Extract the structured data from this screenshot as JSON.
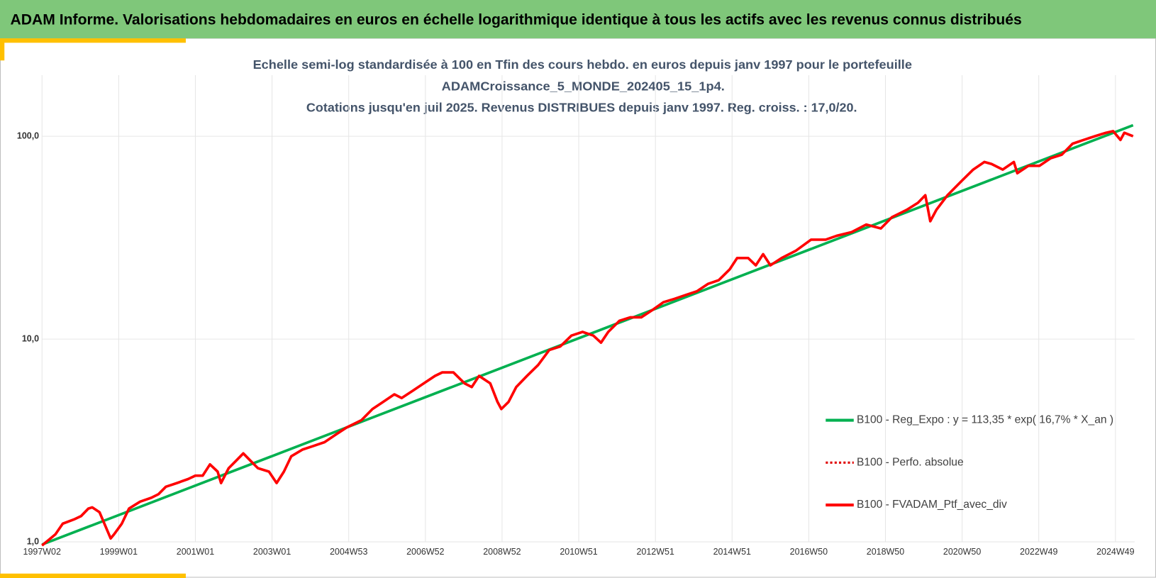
{
  "header": "ADAM Informe. Valorisations hebdomadaires en euros en échelle logarithmique identique à tous les actifs avec les revenus connus distribués",
  "chart_data": {
    "type": "line",
    "title": [
      "Echelle semi-log standardisée  à 100 en Tfin des cours hebdo.  en euros depuis janv 1997 pour le portefeuille",
      "ADAMCroissance_5_MONDE_202405_15_1p4.",
      "Cotations jusqu'en juil 2025. Revenus DISTRIBUES depuis janv 1997. Reg. croiss. : 17,0/20."
    ],
    "log_y": true,
    "grid": true,
    "legend": "right",
    "xlim": [
      1997,
      2025.5
    ],
    "xticks": [
      {
        "value": 1997,
        "label": "1997W02"
      },
      {
        "value": 1999,
        "label": "1999W01"
      },
      {
        "value": 2001,
        "label": "2001W01"
      },
      {
        "value": 2003,
        "label": "2003W01"
      },
      {
        "value": 2005,
        "label": "2004W53"
      },
      {
        "value": 2007,
        "label": "2006W52"
      },
      {
        "value": 2009,
        "label": "2008W52"
      },
      {
        "value": 2011,
        "label": "2010W51"
      },
      {
        "value": 2013,
        "label": "2012W51"
      },
      {
        "value": 2015,
        "label": "2014W51"
      },
      {
        "value": 2017,
        "label": "2016W50"
      },
      {
        "value": 2019,
        "label": "2018W50"
      },
      {
        "value": 2021,
        "label": "2020W50"
      },
      {
        "value": 2023,
        "label": "2022W49"
      },
      {
        "value": 2025,
        "label": "2024W49"
      }
    ],
    "ylim": [
      1,
      200
    ],
    "yticks": [
      {
        "value": 1,
        "label": "1,0"
      },
      {
        "value": 10,
        "label": "10,0"
      },
      {
        "value": 100,
        "label": "100,0"
      }
    ],
    "x": [
      1997.0,
      1997.35,
      1997.54,
      1997.83,
      1998.02,
      1998.21,
      1998.31,
      1998.5,
      1998.79,
      1998.88,
      1999.08,
      1999.27,
      1999.56,
      1999.85,
      2000.04,
      2000.23,
      2000.52,
      2000.81,
      2001.0,
      2001.19,
      2001.38,
      2001.58,
      2001.67,
      2001.87,
      2002.06,
      2002.25,
      2002.44,
      2002.63,
      2002.92,
      2003.12,
      2003.31,
      2003.5,
      2003.79,
      2004.08,
      2004.37,
      2004.65,
      2004.94,
      2005.33,
      2005.62,
      2005.9,
      2006.19,
      2006.38,
      2006.67,
      2006.96,
      2007.25,
      2007.44,
      2007.73,
      2008.02,
      2008.21,
      2008.4,
      2008.69,
      2008.88,
      2008.98,
      2009.17,
      2009.37,
      2009.65,
      2009.94,
      2010.23,
      2010.52,
      2010.81,
      2011.1,
      2011.38,
      2011.58,
      2011.77,
      2012.06,
      2012.35,
      2012.63,
      2012.92,
      2013.21,
      2013.5,
      2013.79,
      2014.08,
      2014.37,
      2014.65,
      2014.94,
      2015.13,
      2015.42,
      2015.62,
      2015.81,
      2016.0,
      2016.29,
      2016.67,
      2017.06,
      2017.44,
      2017.73,
      2018.12,
      2018.5,
      2018.88,
      2019.17,
      2019.56,
      2019.85,
      2020.04,
      2020.17,
      2020.33,
      2020.62,
      2021.0,
      2021.29,
      2021.58,
      2021.77,
      2022.06,
      2022.35,
      2022.44,
      2022.73,
      2023.02,
      2023.31,
      2023.6,
      2023.88,
      2024.17,
      2024.46,
      2024.75,
      2024.94,
      2025.13,
      2025.23,
      2025.46
    ],
    "series": [
      {
        "name": "B100 - Reg_Expo : y = 113,35 * exp( 16,7% *  X_an )",
        "color": "#00b050",
        "style": "solid",
        "x": [
          1997,
          2025.46
        ],
        "values": [
          0.97,
          113.35
        ]
      },
      {
        "name": "B100 - Perfo. absolue",
        "color": "#e00000",
        "style": "dotted",
        "values": [
          0.96,
          1.09,
          1.23,
          1.29,
          1.34,
          1.46,
          1.48,
          1.4,
          1.04,
          1.09,
          1.23,
          1.46,
          1.58,
          1.65,
          1.72,
          1.87,
          1.95,
          2.04,
          2.12,
          2.12,
          2.41,
          2.22,
          1.95,
          2.31,
          2.51,
          2.73,
          2.51,
          2.31,
          2.22,
          1.95,
          2.22,
          2.64,
          2.85,
          2.97,
          3.1,
          3.37,
          3.66,
          3.98,
          4.52,
          4.9,
          5.34,
          5.12,
          5.56,
          6.05,
          6.58,
          6.85,
          6.85,
          6.05,
          5.8,
          6.58,
          6.05,
          4.9,
          4.52,
          4.9,
          5.8,
          6.58,
          7.45,
          8.83,
          9.2,
          10.4,
          10.85,
          10.4,
          9.6,
          10.85,
          12.3,
          12.8,
          12.8,
          13.9,
          15.2,
          15.8,
          16.5,
          17.2,
          18.7,
          19.5,
          22.1,
          25.1,
          25.1,
          23.1,
          26.2,
          23.1,
          25.1,
          27.3,
          30.9,
          30.9,
          32.3,
          33.7,
          36.7,
          35.1,
          39.9,
          43.4,
          47.0,
          51.2,
          38.1,
          43.4,
          51.2,
          60.5,
          68.5,
          74.7,
          73.0,
          68.5,
          74.7,
          65.7,
          71.5,
          71.5,
          77.9,
          81.1,
          91.9,
          95.9,
          100,
          104,
          106,
          95.9,
          104,
          100
        ]
      },
      {
        "name": "B100 - FVADAM_Ptf_avec_div",
        "color": "#ff0000",
        "style": "solid",
        "values": [
          0.96,
          1.09,
          1.23,
          1.29,
          1.34,
          1.46,
          1.48,
          1.4,
          1.04,
          1.09,
          1.23,
          1.46,
          1.58,
          1.65,
          1.72,
          1.87,
          1.95,
          2.04,
          2.12,
          2.12,
          2.41,
          2.22,
          1.95,
          2.31,
          2.51,
          2.73,
          2.51,
          2.31,
          2.22,
          1.95,
          2.22,
          2.64,
          2.85,
          2.97,
          3.1,
          3.37,
          3.66,
          3.98,
          4.52,
          4.9,
          5.34,
          5.12,
          5.56,
          6.05,
          6.58,
          6.85,
          6.85,
          6.05,
          5.8,
          6.58,
          6.05,
          4.9,
          4.52,
          4.9,
          5.8,
          6.58,
          7.45,
          8.83,
          9.2,
          10.4,
          10.85,
          10.4,
          9.6,
          10.85,
          12.3,
          12.8,
          12.8,
          13.9,
          15.2,
          15.8,
          16.5,
          17.2,
          18.7,
          19.5,
          22.1,
          25.1,
          25.1,
          23.1,
          26.2,
          23.1,
          25.1,
          27.3,
          30.9,
          30.9,
          32.3,
          33.7,
          36.7,
          35.1,
          39.9,
          43.4,
          47.0,
          51.2,
          38.1,
          43.4,
          51.2,
          60.5,
          68.5,
          74.7,
          73.0,
          68.5,
          74.7,
          65.7,
          71.5,
          71.5,
          77.9,
          81.1,
          91.9,
          95.9,
          100,
          104,
          106,
          95.9,
          104,
          100
        ]
      }
    ]
  }
}
